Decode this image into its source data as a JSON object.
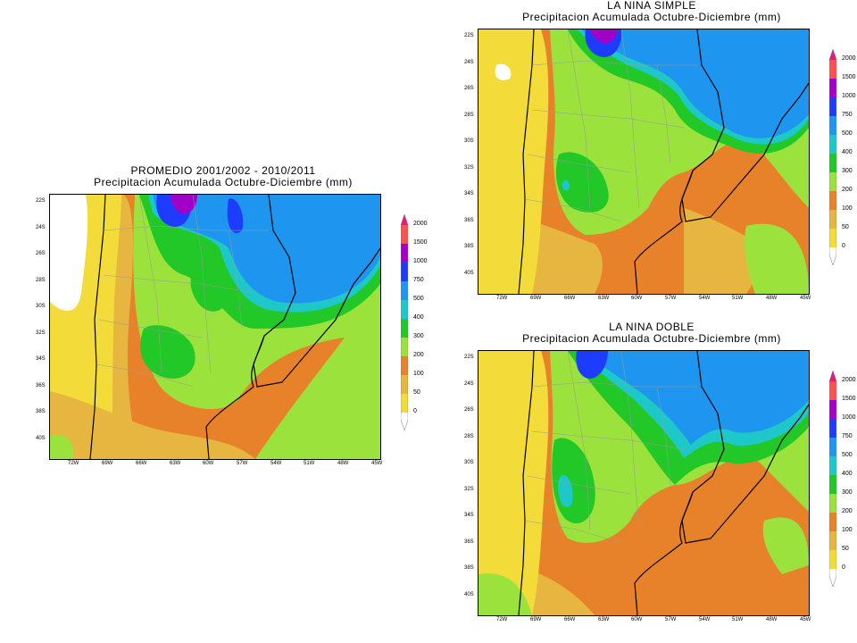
{
  "palette": {
    "0": "#ffffff",
    "1": "#f3dc3a",
    "2": "#e6b640",
    "3": "#e8822a",
    "4": "#9be23c",
    "5": "#21c827",
    "6": "#1fc8c8",
    "7": "#1e96f0",
    "8": "#1e3cff",
    "9": "#a000c8",
    "10": "#e6197d",
    "11": "#ff5050"
  },
  "colorbar": {
    "labels": [
      "2000",
      "1500",
      "1000",
      "750",
      "500",
      "400",
      "300",
      "200",
      "100",
      "50",
      "0"
    ]
  },
  "lat_labels": [
    "22S",
    "24S",
    "26S",
    "28S",
    "30S",
    "32S",
    "34S",
    "36S",
    "38S",
    "40S"
  ],
  "lon_labels": [
    "72W",
    "69W",
    "66W",
    "63W",
    "60W",
    "57W",
    "54W",
    "51W",
    "48W",
    "45W"
  ],
  "maps": [
    {
      "id": "promedio",
      "title_line1": "PROMEDIO 2001/2002 - 2010/2011",
      "title_line2": "Precipitacion Acumulada Octubre-Diciembre (mm)",
      "lat_labels": [
        "22S",
        "24S",
        "26S",
        "28S",
        "30S",
        "32S",
        "34S",
        "36S",
        "38S",
        "40S"
      ]
    },
    {
      "id": "simple",
      "title_line1": "LA NINA SIMPLE",
      "title_line2": "Precipitacion Acumulada Octubre-Diciembre (mm)",
      "lat_labels": [
        "22S",
        "24S",
        "26S",
        "28S",
        "30S",
        "32S",
        "34S",
        "36S",
        "38S",
        "40S"
      ]
    },
    {
      "id": "doble",
      "title_line1": "LA NINA DOBLE",
      "title_line2": "Precipitacion Acumulada Octubre-Diciembre (mm)",
      "lat_labels": [
        "22S",
        "24S",
        "26S",
        "28S",
        "30S",
        "32S",
        "34S",
        "36S",
        "38S",
        "40S"
      ]
    }
  ]
}
